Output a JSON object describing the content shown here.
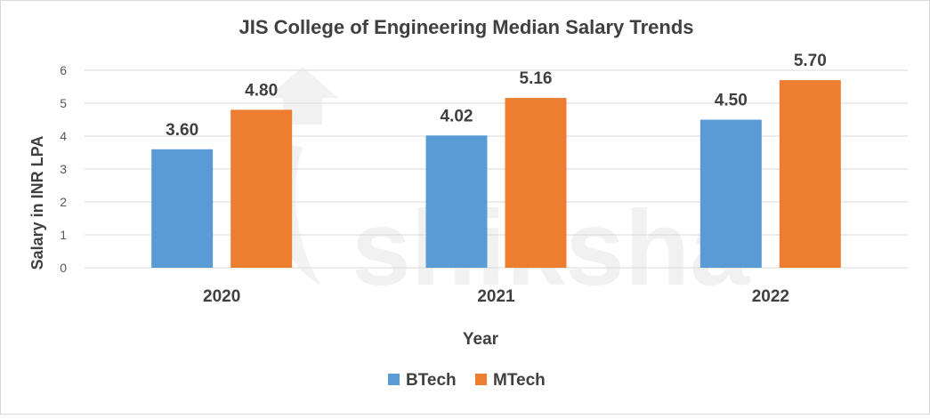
{
  "chart_data": {
    "type": "bar",
    "title": "JIS College of Engineering Median Salary Trends",
    "xlabel": "Year",
    "ylabel": "Salary in INR LPA",
    "categories": [
      "2020",
      "2021",
      "2022"
    ],
    "series": [
      {
        "name": "BTech",
        "color": "#5B9BD5",
        "values": [
          3.6,
          4.02,
          4.5
        ],
        "labels": [
          "3.60",
          "4.02",
          "4.50"
        ]
      },
      {
        "name": "MTech",
        "color": "#ED7D31",
        "values": [
          4.8,
          5.16,
          5.7
        ],
        "labels": [
          "4.80",
          "5.16",
          "5.70"
        ]
      }
    ],
    "ylim": [
      0,
      6
    ],
    "yticks": [
      "0",
      "1",
      "2",
      "3",
      "4",
      "5",
      "6"
    ],
    "grid": true,
    "legend_position": "bottom-center"
  },
  "watermark": {
    "text": "shiksha"
  }
}
